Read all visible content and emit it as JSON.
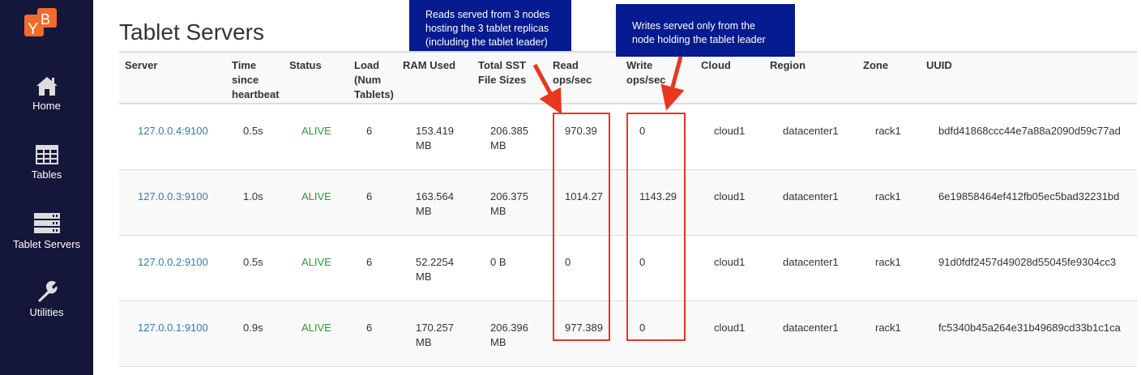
{
  "sidebar": {
    "logo": "YB",
    "items": [
      {
        "label": "Home",
        "icon": "home-icon"
      },
      {
        "label": "Tables",
        "icon": "table-icon"
      },
      {
        "label": "Tablet Servers",
        "icon": "server-icon"
      },
      {
        "label": "Utilities",
        "icon": "wrench-icon"
      }
    ]
  },
  "page_title": "Tablet Servers",
  "columns": [
    "Server",
    "Time since heartbeat",
    "Status",
    "Load (Num Tablets)",
    "RAM Used",
    "Total SST File Sizes",
    "Read ops/sec",
    "Write ops/sec",
    "Cloud",
    "Region",
    "Zone",
    "UUID"
  ],
  "rows": [
    [
      "127.0.0.4:9100",
      "0.5s",
      "ALIVE",
      "6",
      "153.419 MB",
      "206.385 MB",
      "970.39",
      "0",
      "cloud1",
      "datacenter1",
      "rack1",
      "bdfd41868ccc44e7a88a2090d59c77ad"
    ],
    [
      "127.0.0.3:9100",
      "1.0s",
      "ALIVE",
      "6",
      "163.564 MB",
      "206.375 MB",
      "1014.27",
      "1143.29",
      "cloud1",
      "datacenter1",
      "rack1",
      "6e19858464ef412fb05ec5bad32231bd"
    ],
    [
      "127.0.0.2:9100",
      "0.5s",
      "ALIVE",
      "6",
      "52.2254 MB",
      "0 B",
      "0",
      "0",
      "cloud1",
      "datacenter1",
      "rack1",
      "91d0fdf2457d49028d55045fe9304cc3"
    ],
    [
      "127.0.0.1:9100",
      "0.9s",
      "ALIVE",
      "6",
      "170.257 MB",
      "206.396 MB",
      "977.389",
      "0",
      "cloud1",
      "datacenter1",
      "rack1",
      "fc5340b45a264e31b49689cd33b1c1ca"
    ]
  ],
  "annotations": {
    "reads": "Reads served from 3 nodes hosting the 3 tablet replicas (including the tablet leader)",
    "writes": "Writes served only from the node holding the tablet leader"
  },
  "colors": {
    "sidebar": "#14163a",
    "accent": "#f26b2d",
    "callout": "#051b8f",
    "highlight": "#e8361f",
    "link": "#337ab7",
    "alive": "#2a9d2a"
  }
}
